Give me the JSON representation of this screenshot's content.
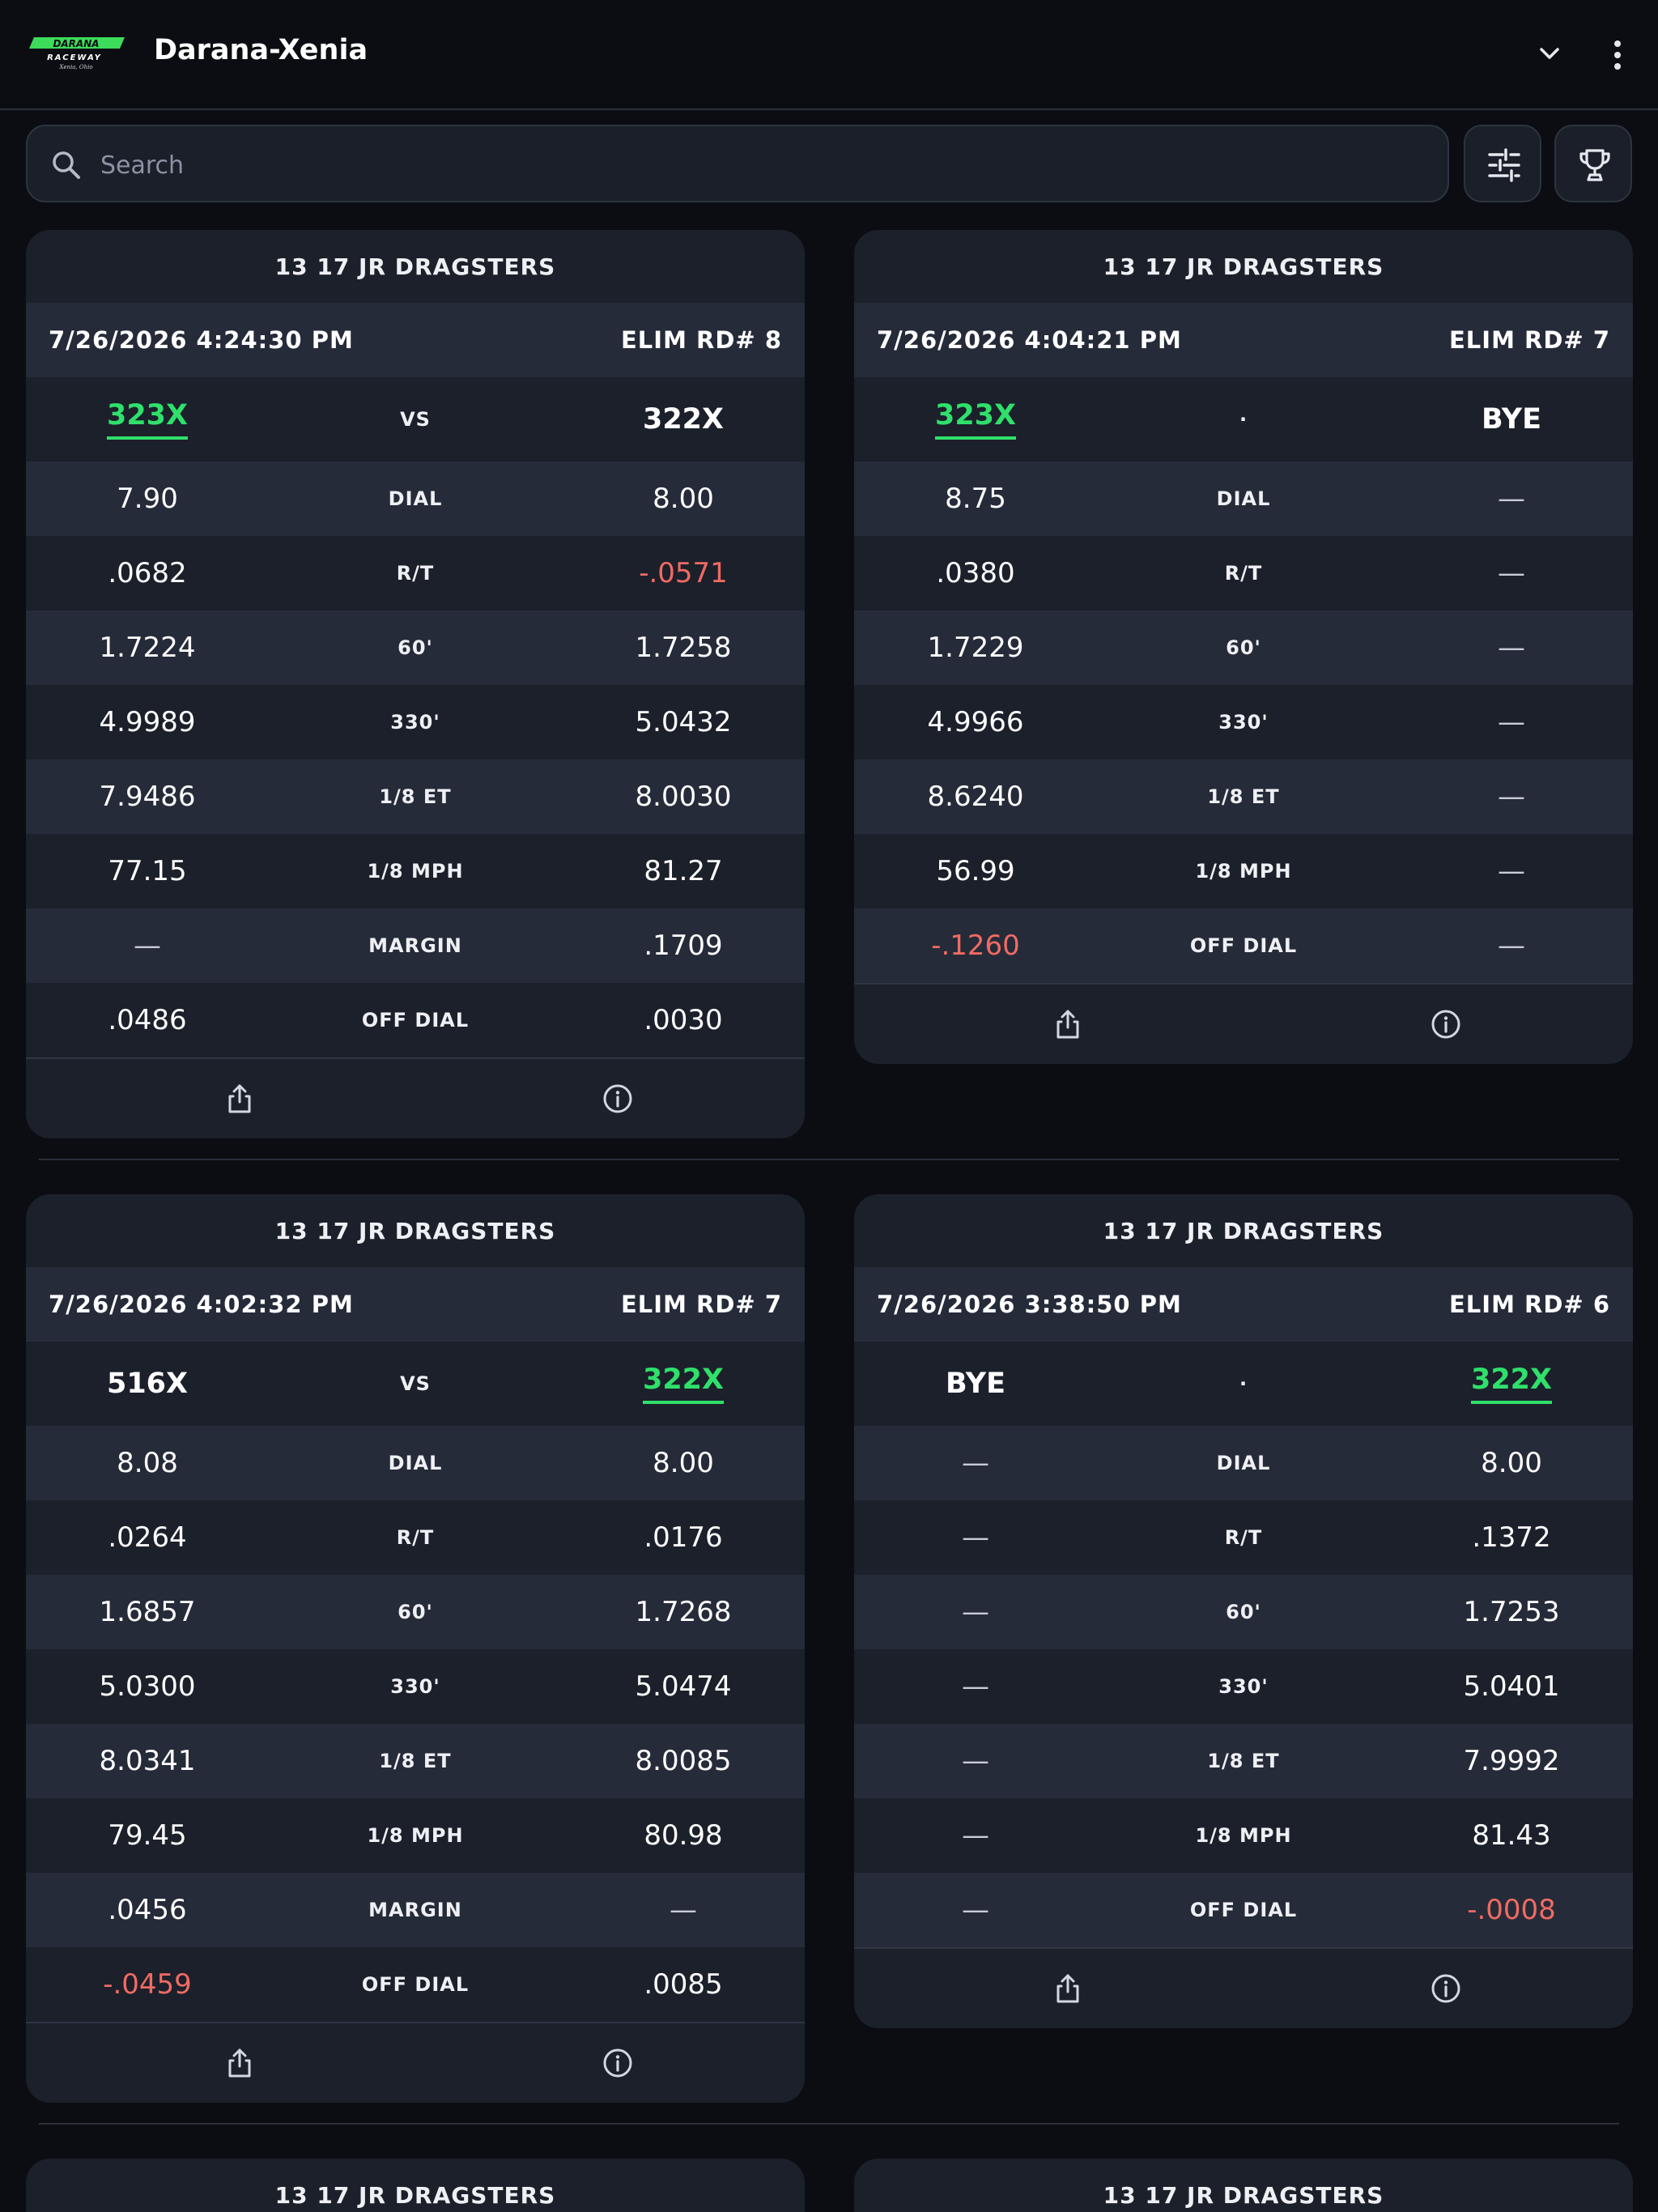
{
  "app": {
    "title": "Darana-Xenia",
    "logo_text": "DARANA RACEWAY",
    "logo_subtext": "Xenia, Ohio"
  },
  "search": {
    "placeholder": "Search",
    "value": ""
  },
  "toolbar": {
    "filter_icon": "sliders-icon",
    "trophy_icon": "trophy-icon"
  },
  "colors": {
    "win": "#2fe06a",
    "negative": "#f06b63",
    "card": "#1c202b",
    "card_alt_row": "#262b39",
    "background": "#0b0d13"
  },
  "cards": [
    {
      "class_name": "13 17 JR DRAGSTERS",
      "timestamp": "7/26/2026 4:24:30 PM",
      "round": "ELIM RD# 8",
      "left_lane": "323X",
      "center": "VS",
      "right_lane": "322X",
      "rows": [
        {
          "label": "DIAL",
          "left": "7.90",
          "right": "8.00"
        },
        {
          "label": "R/T",
          "left": ".0682",
          "right": "-.0571"
        },
        {
          "label": "60'",
          "left": "1.7224",
          "right": "1.7258"
        },
        {
          "label": "330'",
          "left": "4.9989",
          "right": "5.0432"
        },
        {
          "label": "1/8 ET",
          "left": "7.9486",
          "right": "8.0030"
        },
        {
          "label": "1/8 MPH",
          "left": "77.15",
          "right": "81.27"
        },
        {
          "label": "MARGIN",
          "left": "—",
          "right": ".1709"
        },
        {
          "label": "OFF DIAL",
          "left": ".0486",
          "right": ".0030"
        }
      ]
    },
    {
      "class_name": "13 17 JR DRAGSTERS",
      "timestamp": "7/26/2026 4:04:21 PM",
      "round": "ELIM RD# 7",
      "left_lane": "323X",
      "center": "·",
      "right_lane": "BYE",
      "rows": [
        {
          "label": "DIAL",
          "left": "8.75",
          "right": "—"
        },
        {
          "label": "R/T",
          "left": ".0380",
          "right": "—"
        },
        {
          "label": "60'",
          "left": "1.7229",
          "right": "—"
        },
        {
          "label": "330'",
          "left": "4.9966",
          "right": "—"
        },
        {
          "label": "1/8 ET",
          "left": "8.6240",
          "right": "—"
        },
        {
          "label": "1/8 MPH",
          "left": "56.99",
          "right": "—"
        },
        {
          "label": "OFF DIAL",
          "left": "-.1260",
          "right": "—"
        }
      ]
    },
    {
      "class_name": "13 17 JR DRAGSTERS",
      "timestamp": "7/26/2026 4:02:32 PM",
      "round": "ELIM RD# 7",
      "left_lane": "516X",
      "center": "VS",
      "right_lane": "322X",
      "rows": [
        {
          "label": "DIAL",
          "left": "8.08",
          "right": "8.00"
        },
        {
          "label": "R/T",
          "left": ".0264",
          "right": ".0176"
        },
        {
          "label": "60'",
          "left": "1.6857",
          "right": "1.7268"
        },
        {
          "label": "330'",
          "left": "5.0300",
          "right": "5.0474"
        },
        {
          "label": "1/8 ET",
          "left": "8.0341",
          "right": "8.0085"
        },
        {
          "label": "1/8 MPH",
          "left": "79.45",
          "right": "80.98"
        },
        {
          "label": "MARGIN",
          "left": ".0456",
          "right": "—"
        },
        {
          "label": "OFF DIAL",
          "left": "-.0459",
          "right": ".0085"
        }
      ]
    },
    {
      "class_name": "13 17 JR DRAGSTERS",
      "timestamp": "7/26/2026 3:38:50 PM",
      "round": "ELIM RD# 6",
      "left_lane": "BYE",
      "center": "·",
      "right_lane": "322X",
      "rows": [
        {
          "label": "DIAL",
          "left": "—",
          "right": "8.00"
        },
        {
          "label": "R/T",
          "left": "—",
          "right": ".1372"
        },
        {
          "label": "60'",
          "left": "—",
          "right": "1.7253"
        },
        {
          "label": "330'",
          "left": "—",
          "right": "5.0401"
        },
        {
          "label": "1/8 ET",
          "left": "—",
          "right": "7.9992"
        },
        {
          "label": "1/8 MPH",
          "left": "—",
          "right": "81.43"
        },
        {
          "label": "OFF DIAL",
          "left": "—",
          "right": "-.0008"
        }
      ]
    },
    {
      "class_name": "13 17 JR DRAGSTERS"
    },
    {
      "class_name": "13 17 JR DRAGSTERS"
    }
  ]
}
